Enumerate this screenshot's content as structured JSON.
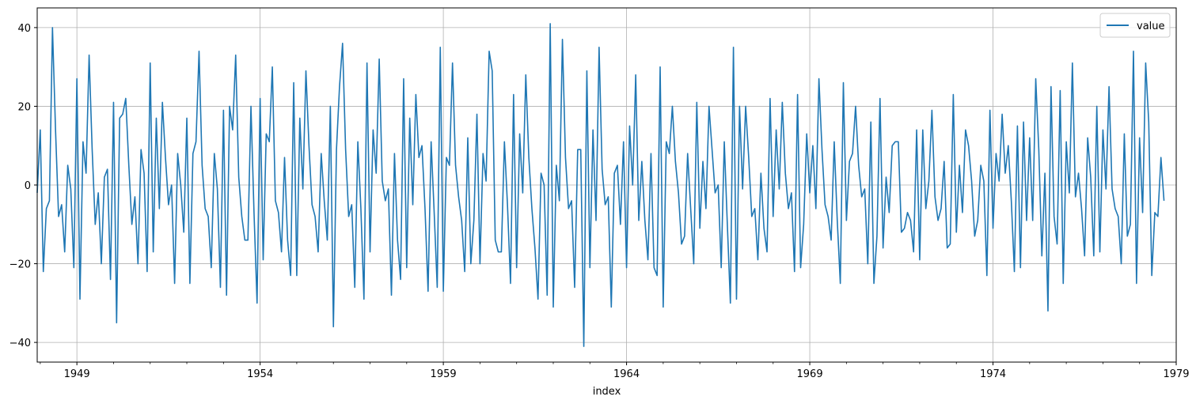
{
  "chart_data": {
    "type": "line",
    "xlabel": "index",
    "ylabel": "",
    "title": "",
    "xlim": [
      "1947-12",
      "1979-01"
    ],
    "ylim": [
      -45,
      45
    ],
    "x_ticks": [
      "1949",
      "1954",
      "1959",
      "1964",
      "1969",
      "1974",
      "1979"
    ],
    "y_ticks": [
      "−40",
      "−20",
      "0",
      "20",
      "40"
    ],
    "grid": true,
    "legend_position": "top-right",
    "line_color": "#1f77b4",
    "series": [
      {
        "name": "value",
        "start": "1947-12",
        "frequency": "monthly",
        "values": [
          -2,
          14,
          -22,
          -6,
          -4,
          40,
          14,
          -8,
          -5,
          -17,
          5,
          -1,
          -21,
          27,
          -29,
          11,
          3,
          33,
          9,
          -10,
          -2,
          -20,
          2,
          4,
          -24,
          21,
          -35,
          17,
          18,
          22,
          5,
          -10,
          -3,
          -20,
          9,
          3,
          -22,
          31,
          -17,
          17,
          -6,
          21,
          7,
          -5,
          0,
          -25,
          8,
          0,
          -12,
          17,
          -25,
          8,
          11,
          34,
          5,
          -6,
          -8,
          -21,
          8,
          -1,
          -26,
          19,
          -28,
          20,
          14,
          33,
          2,
          -8,
          -14,
          -14,
          20,
          -7,
          -30,
          22,
          -19,
          13,
          11,
          30,
          -4,
          -7,
          -17,
          7,
          -14,
          -23,
          26,
          -23,
          17,
          -1,
          29,
          10,
          -5,
          -8,
          -17,
          8,
          -4,
          -14,
          20,
          -36,
          9,
          25,
          36,
          9,
          -8,
          -5,
          -26,
          11,
          -6,
          -29,
          31,
          -17,
          14,
          3,
          32,
          1,
          -4,
          -1,
          -28,
          8,
          -14,
          -24,
          27,
          -21,
          17,
          -5,
          23,
          7,
          10,
          -6,
          -27,
          11,
          -7,
          -26,
          35,
          -27,
          7,
          5,
          31,
          5,
          -3,
          -9,
          -22,
          12,
          -20,
          -9,
          18,
          -20,
          8,
          1,
          34,
          29,
          -14,
          -17,
          -17,
          11,
          -5,
          -25,
          23,
          -21,
          13,
          -2,
          28,
          7,
          -6,
          -16,
          -29,
          3,
          0,
          -28,
          41,
          -31,
          5,
          -4,
          37,
          7,
          -6,
          -4,
          -26,
          9,
          9,
          -41,
          29,
          -21,
          14,
          -9,
          35,
          4,
          -5,
          -3,
          -31,
          3,
          5,
          -10,
          11,
          -21,
          15,
          0,
          28,
          -9,
          6,
          -9,
          -19,
          8,
          -21,
          -23,
          30,
          -31,
          11,
          8,
          20,
          6,
          -2,
          -15,
          -13,
          8,
          -6,
          -20,
          21,
          -11,
          6,
          -6,
          20,
          9,
          -2,
          0,
          -21,
          11,
          -10,
          -30,
          35,
          -29,
          20,
          -1,
          20,
          7,
          -8,
          -6,
          -19,
          3,
          -11,
          -17,
          22,
          -8,
          14,
          -1,
          21,
          3,
          -6,
          -2,
          -22,
          23,
          -21,
          -10,
          13,
          -2,
          10,
          -6,
          27,
          9,
          -5,
          -8,
          -14,
          11,
          -9,
          -25,
          26,
          -9,
          6,
          8,
          20,
          5,
          -3,
          -1,
          -20,
          16,
          -25,
          -13,
          22,
          -16,
          2,
          -7,
          10,
          11,
          11,
          -12,
          -11,
          -7,
          -9,
          -17,
          14,
          -19,
          14,
          -6,
          1,
          19,
          -3,
          -9,
          -6,
          6,
          -16,
          -15,
          23,
          -12,
          5,
          -7,
          14,
          10,
          1,
          -13,
          -9,
          5,
          1,
          -23,
          19,
          -11,
          8,
          1,
          18,
          3,
          10,
          -4,
          -22,
          15,
          -21,
          16,
          -9,
          12,
          -9,
          27,
          9,
          -18,
          3,
          -32,
          25,
          -8,
          -15,
          24,
          -25,
          11,
          -2,
          31,
          -3,
          3,
          -6,
          -18,
          12,
          2,
          -18,
          20,
          -17,
          14,
          -1,
          25,
          -1,
          -6,
          -8,
          -20,
          13,
          -13,
          -10,
          34,
          -25,
          12,
          -7,
          31,
          16,
          -23,
          -7,
          -8,
          7,
          -4
        ]
      }
    ]
  }
}
